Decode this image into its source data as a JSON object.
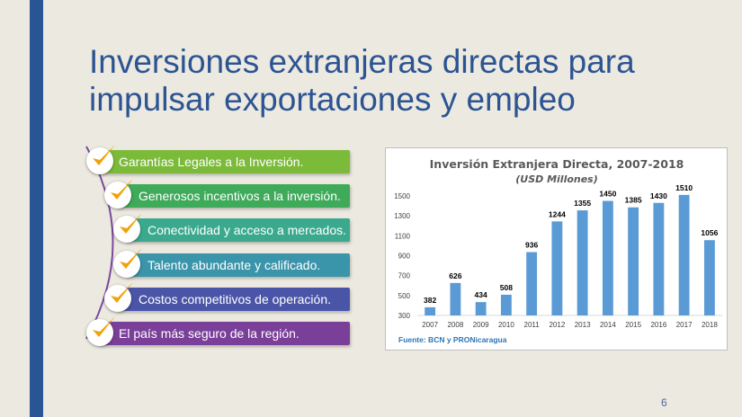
{
  "slide": {
    "title_line1": "Inversiones extranjeras directas para",
    "title_line2": "impulsar exportaciones y empleo",
    "page_number": "6",
    "accent_color": "#2a5595"
  },
  "bullets": [
    {
      "label": "Garantías Legales a la Inversión.",
      "color": "#7cba3a"
    },
    {
      "label": "Generosos incentivos a la inversión.",
      "color": "#3eaa5a"
    },
    {
      "label": "Conectividad y acceso a mercados.",
      "color": "#3aa98e"
    },
    {
      "label": "Talento abundante y calificado.",
      "color": "#3a94aa"
    },
    {
      "label": "Costos competitivos de operación.",
      "color": "#4a55a8"
    },
    {
      "label": "El país más seguro de la región.",
      "color": "#7a3f98"
    }
  ],
  "chart_data": {
    "type": "bar",
    "title": "Inversión Extranjera Directa, 2007-2018",
    "subtitle": "(USD Millones)",
    "categories": [
      "2007",
      "2008",
      "2009",
      "2010",
      "2011",
      "2012",
      "2013",
      "2014",
      "2015",
      "2016",
      "2017",
      "2018"
    ],
    "values": [
      382,
      626,
      434,
      508,
      936,
      1244,
      1355,
      1450,
      1385,
      1430,
      1510,
      1056
    ],
    "ylim": [
      300,
      1500
    ],
    "yticks": [
      300,
      500,
      700,
      900,
      1100,
      1300,
      1500
    ],
    "bar_color": "#5b9bd5",
    "source": "Fuente: BCN y PRONicaragua",
    "grid": false,
    "legend": "none"
  }
}
